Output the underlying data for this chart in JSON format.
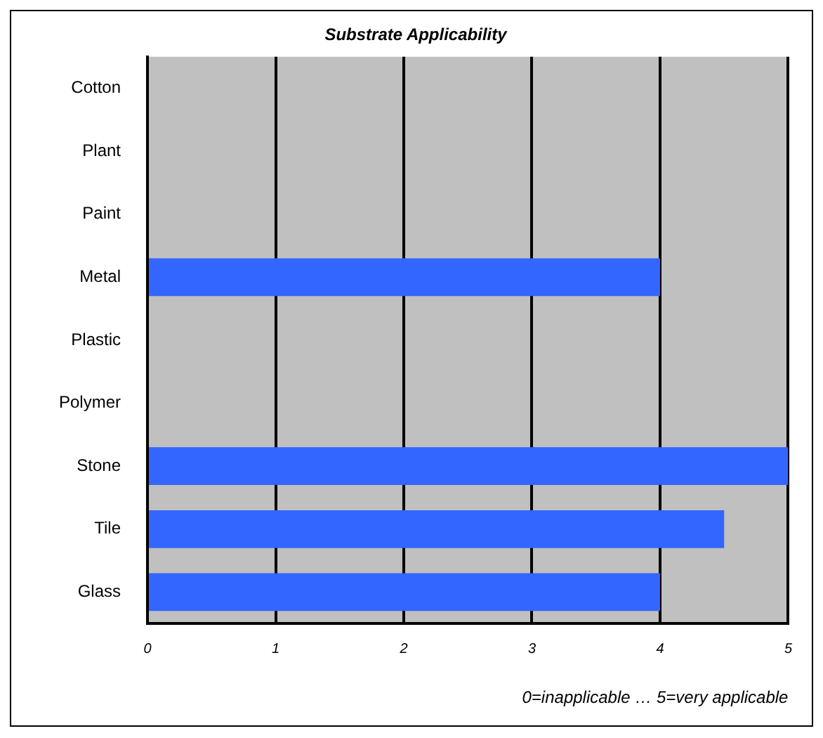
{
  "chart_data": {
    "type": "bar",
    "orientation": "horizontal",
    "title": "Substrate Applicability",
    "xlabel": "0=inapplicable … 5=very applicable",
    "categories": [
      "Cotton",
      "Plant",
      "Paint",
      "Metal",
      "Plastic",
      "Polymer",
      "Stone",
      "Tile",
      "Glass"
    ],
    "values": [
      0,
      0,
      0,
      4,
      0,
      0,
      5,
      4.5,
      4
    ],
    "color": "#3366ff",
    "xlim": [
      0,
      5
    ],
    "xticks": [
      0,
      1,
      2,
      3,
      4,
      5
    ],
    "grid": "x",
    "legend": false
  }
}
